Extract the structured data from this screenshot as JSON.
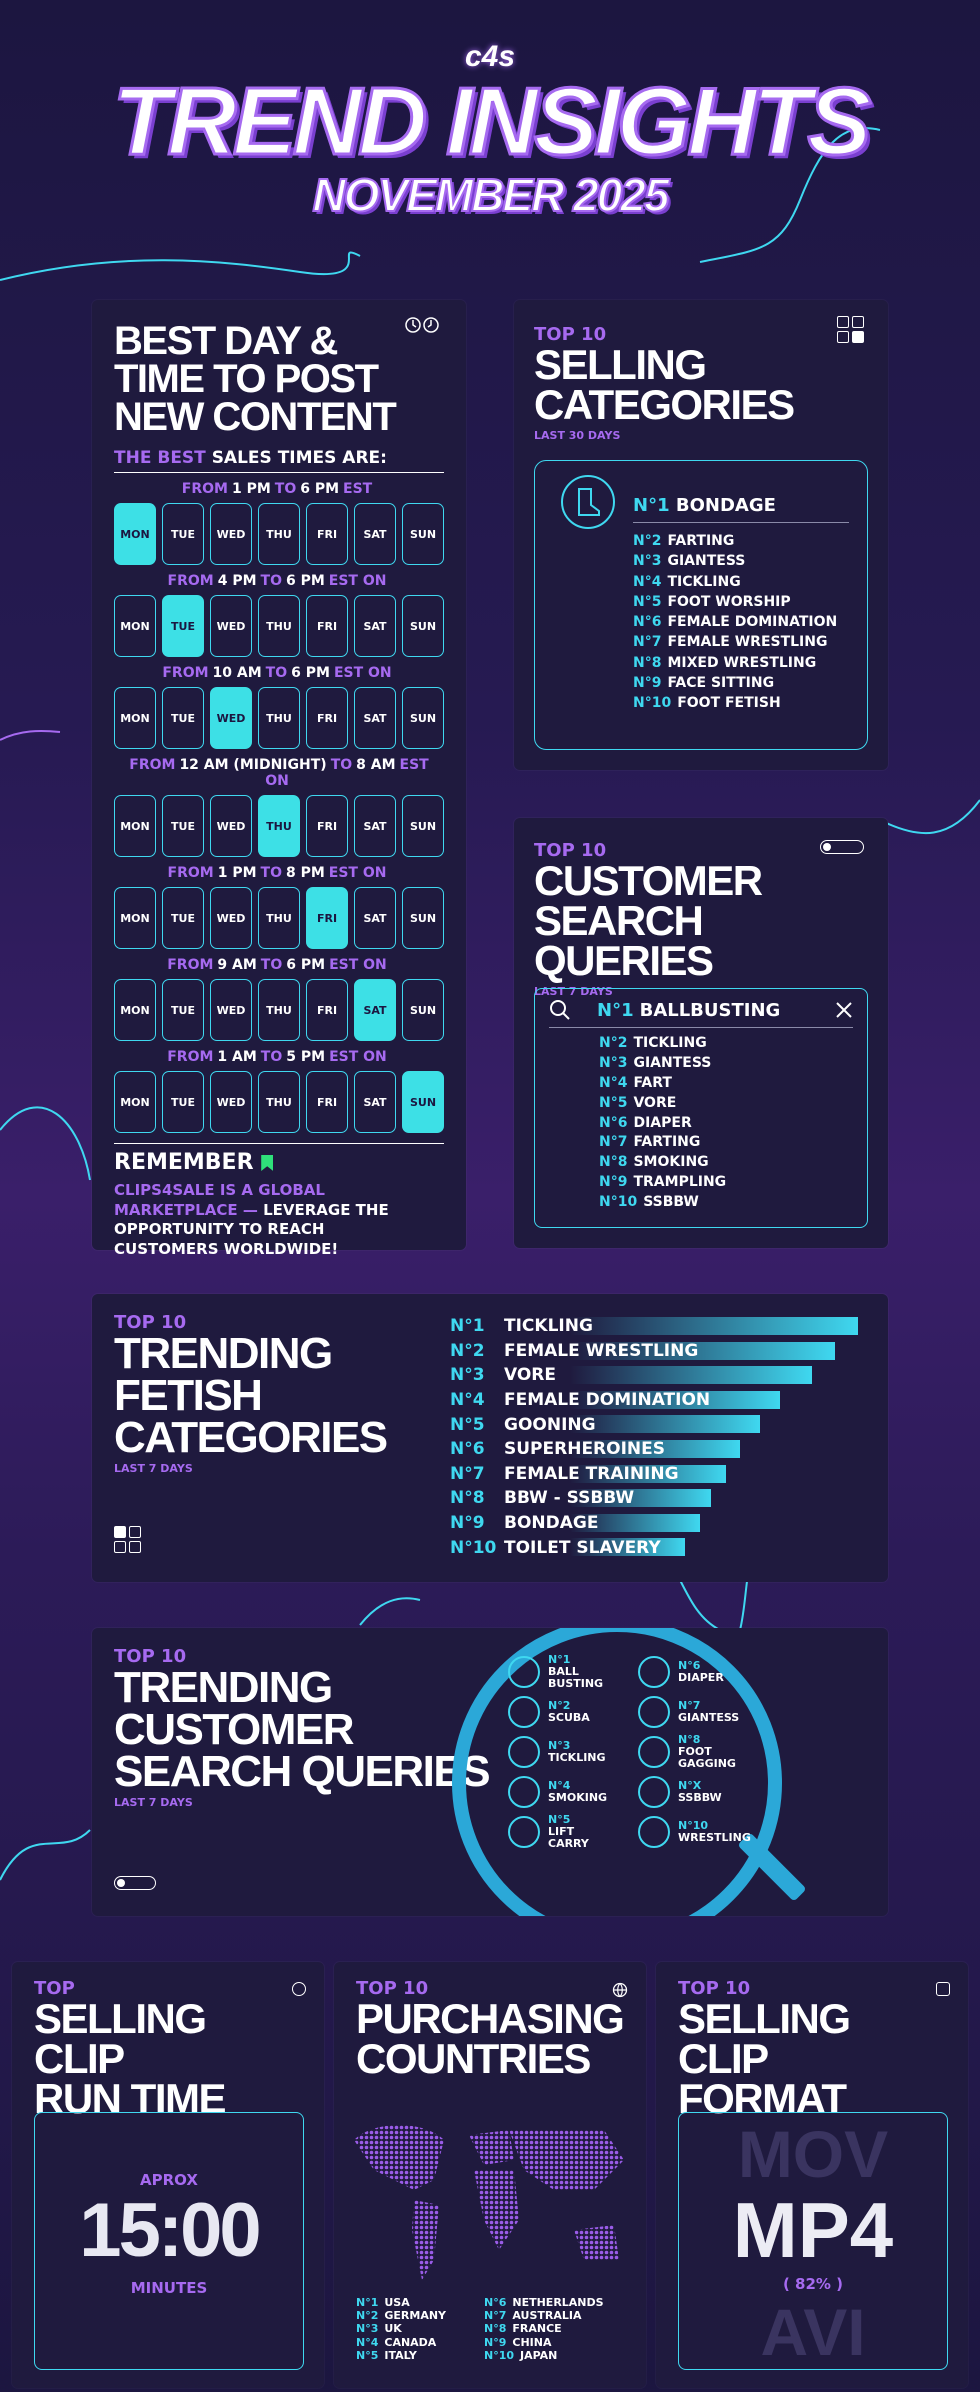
{
  "header": {
    "logo": "c4s",
    "title": "TREND INSIGHTS",
    "subtitle": "NOVEMBER 2025"
  },
  "best_day": {
    "title_lines": [
      "BEST DAY &",
      "TIME TO POST",
      "NEW CONTENT"
    ],
    "lead_purple": "THE BEST",
    "lead_white": "SALES TIMES ARE:",
    "days": [
      "MON",
      "TUE",
      "WED",
      "THU",
      "FRI",
      "SAT",
      "SUN"
    ],
    "rows": [
      {
        "pre": "FROM",
        "t1": "1 PM",
        "mid": "TO",
        "t2": "6 PM",
        "post": "EST",
        "active": 0
      },
      {
        "pre": "FROM",
        "t1": "4 PM",
        "mid": "TO",
        "t2": "6 PM",
        "post": "EST ON",
        "active": 1
      },
      {
        "pre": "FROM",
        "t1": "10 AM",
        "mid": "TO",
        "t2": "6 PM",
        "post": "EST ON",
        "active": 2
      },
      {
        "pre": "FROM",
        "t1": "12 AM (MIDNIGHT)",
        "mid": "TO",
        "t2": "8 AM",
        "post": "EST ON",
        "active": 3
      },
      {
        "pre": "FROM",
        "t1": "1 PM",
        "mid": "TO",
        "t2": "8 PM",
        "post": "EST ON",
        "active": 4
      },
      {
        "pre": "FROM",
        "t1": "9 AM",
        "mid": "TO",
        "t2": "6 PM",
        "post": "EST ON",
        "active": 5
      },
      {
        "pre": "FROM",
        "t1": "1 AM",
        "mid": "TO",
        "t2": "5 PM",
        "post": "EST ON",
        "active": 6
      }
    ],
    "remember_title": "REMEMBER",
    "remember_purple": "CLIPS4SALE IS A GLOBAL MARKETPLACE —",
    "remember_white": "LEVERAGE THE OPPORTUNITY TO REACH CUSTOMERS WORLDWIDE!"
  },
  "selling_categories": {
    "top": "TOP 10",
    "title_lines": [
      "SELLING",
      "CATEGORIES"
    ],
    "period": "LAST 30 DAYS",
    "first_rank": "N°1",
    "first": "BONDAGE",
    "items": [
      {
        "rank": "N°2",
        "label": "FARTING"
      },
      {
        "rank": "N°3",
        "label": "GIANTESS"
      },
      {
        "rank": "N°4",
        "label": "TICKLING"
      },
      {
        "rank": "N°5",
        "label": "FOOT WORSHIP"
      },
      {
        "rank": "N°6",
        "label": "FEMALE DOMINATION"
      },
      {
        "rank": "N°7",
        "label": "FEMALE WRESTLING"
      },
      {
        "rank": "N°8",
        "label": "MIXED WRESTLING"
      },
      {
        "rank": "N°9",
        "label": "FACE SITTING"
      },
      {
        "rank": "N°10",
        "label": "FOOT FETISH"
      }
    ]
  },
  "search_queries": {
    "top": "TOP 10",
    "title_lines": [
      "CUSTOMER",
      "SEARCH QUERIES"
    ],
    "period": "LAST 7 DAYS",
    "first_rank": "N°1",
    "first": "BALLBUSTING",
    "items": [
      {
        "rank": "N°2",
        "label": "TICKLING"
      },
      {
        "rank": "N°3",
        "label": "GIANTESS"
      },
      {
        "rank": "N°4",
        "label": "FART"
      },
      {
        "rank": "N°5",
        "label": "VORE"
      },
      {
        "rank": "N°6",
        "label": "DIAPER"
      },
      {
        "rank": "N°7",
        "label": "FARTING"
      },
      {
        "rank": "N°8",
        "label": "SMOKING"
      },
      {
        "rank": "N°9",
        "label": "TRAMPLING"
      },
      {
        "rank": "N°10",
        "label": "SSBBW"
      }
    ]
  },
  "trending_fetish": {
    "top": "TOP 10",
    "title_lines": [
      "TRENDING",
      "FETISH",
      "CATEGORIES"
    ],
    "period": "LAST 7 DAYS",
    "items": [
      {
        "rank": "N°1",
        "label": "TICKLING",
        "bar": 1.0
      },
      {
        "rank": "N°2",
        "label": "FEMALE WRESTLING",
        "bar": 0.92
      },
      {
        "rank": "N°3",
        "label": "VORE",
        "bar": 0.84
      },
      {
        "rank": "N°4",
        "label": "FEMALE DOMINATION",
        "bar": 0.73
      },
      {
        "rank": "N°5",
        "label": "GOONING",
        "bar": 0.66
      },
      {
        "rank": "N°6",
        "label": "SUPERHEROINES",
        "bar": 0.59
      },
      {
        "rank": "N°7",
        "label": "FEMALE TRAINING",
        "bar": 0.54
      },
      {
        "rank": "N°8",
        "label": "BBW - SSBBW",
        "bar": 0.49
      },
      {
        "rank": "N°9",
        "label": "BONDAGE",
        "bar": 0.45
      },
      {
        "rank": "N°10",
        "label": "TOILET SLAVERY",
        "bar": 0.4
      }
    ]
  },
  "trending_search": {
    "top": "TOP 10",
    "title_lines": [
      "TRENDING",
      "CUSTOMER",
      "SEARCH QUERIES"
    ],
    "period": "LAST 7 DAYS",
    "left": [
      {
        "rank": "N°1",
        "label": "BALL BUSTING"
      },
      {
        "rank": "N°2",
        "label": "SCUBA"
      },
      {
        "rank": "N°3",
        "label": "TICKLING"
      },
      {
        "rank": "N°4",
        "label": "SMOKING"
      },
      {
        "rank": "N°5",
        "label": "LIFT CARRY"
      }
    ],
    "right": [
      {
        "rank": "N°6",
        "label": "DIAPER"
      },
      {
        "rank": "N°7",
        "label": "GIANTESS"
      },
      {
        "rank": "N°8",
        "label": "FOOT GAGGING"
      },
      {
        "rank": "N°X",
        "label": "SSBBW"
      },
      {
        "rank": "N°10",
        "label": "WRESTLING"
      }
    ]
  },
  "runtime": {
    "top": "TOP",
    "title_lines": [
      "SELLING CLIP",
      "RUN TIME"
    ],
    "aprox": "APROX",
    "value": "15:00",
    "unit": "MINUTES"
  },
  "countries": {
    "top": "TOP 10",
    "title_lines": [
      "PURCHASING",
      "COUNTRIES"
    ],
    "left": [
      {
        "rank": "N°1",
        "label": "USA"
      },
      {
        "rank": "N°2",
        "label": "GERMANY"
      },
      {
        "rank": "N°3",
        "label": "UK"
      },
      {
        "rank": "N°4",
        "label": "CANADA"
      },
      {
        "rank": "N°5",
        "label": "ITALY"
      }
    ],
    "right": [
      {
        "rank": "N°6",
        "label": "NETHERLANDS"
      },
      {
        "rank": "N°7",
        "label": "AUSTRALIA"
      },
      {
        "rank": "N°8",
        "label": "FRANCE"
      },
      {
        "rank": "N°9",
        "label": "CHINA"
      },
      {
        "rank": "N°10",
        "label": "JAPAN"
      }
    ]
  },
  "format": {
    "top": "TOP 10",
    "title_lines": [
      "SELLING CLIP",
      "FORMAT"
    ],
    "above": "MOV",
    "value": "MP4",
    "percent": "( 82% )",
    "below": "AVI"
  },
  "colors": {
    "cyan": "#3fd8f0",
    "purple": "#a66af0",
    "panel": "#1f1a3e"
  }
}
